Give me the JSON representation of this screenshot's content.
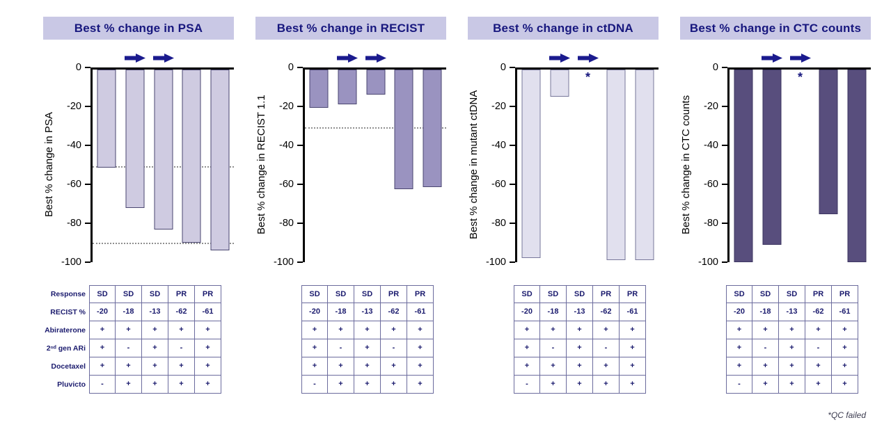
{
  "figure": {
    "footnote": "*QC failed"
  },
  "colors": {
    "banner_bg": "#c9c8e5",
    "banner_text": "#17177e",
    "arrow": "#1b1b8e",
    "table_border": "#6b6b9d",
    "table_text": "#1b1b6e",
    "ref_line": "#8f8f8f"
  },
  "table": {
    "row_labels": [
      "Response",
      "RECIST %",
      "Abiraterone",
      "2ⁿᵈ gen ARi",
      "Docetaxel",
      "Pluvicto"
    ],
    "rows": [
      [
        "SD",
        "SD",
        "SD",
        "PR",
        "PR"
      ],
      [
        "-20",
        "-18",
        "-13",
        "-62",
        "-61"
      ],
      [
        "+",
        "+",
        "+",
        "+",
        "+"
      ],
      [
        "+",
        "-",
        "+",
        "-",
        "+"
      ],
      [
        "+",
        "+",
        "+",
        "+",
        "+"
      ],
      [
        "-",
        "+",
        "+",
        "+",
        "+"
      ]
    ]
  },
  "chart_data": [
    {
      "type": "bar",
      "title": "Best % change in PSA",
      "ylabel": "Best % change in PSA",
      "ylim": [
        -100,
        0
      ],
      "yticks": [
        0,
        -20,
        -40,
        -60,
        -80,
        -100
      ],
      "values": [
        -51,
        -72,
        -83,
        -90,
        -94
      ],
      "ref_lines": [
        -50,
        -90
      ],
      "arrow_slots": [
        1,
        2
      ],
      "asterisk_slot": null,
      "bar_color": "#cfcbe1",
      "bar_border": "#4a4670"
    },
    {
      "type": "bar",
      "title": "Best % change in RECIST",
      "ylabel": "Best % change in RECIST 1.1",
      "ylim": [
        -100,
        0
      ],
      "yticks": [
        0,
        -20,
        -40,
        -60,
        -80,
        -100
      ],
      "values": [
        -20,
        -18,
        -13,
        -62,
        -61
      ],
      "ref_lines": [
        -30
      ],
      "arrow_slots": [
        1,
        2
      ],
      "asterisk_slot": null,
      "bar_color": "#9a93c0",
      "bar_border": "#4a4670"
    },
    {
      "type": "bar",
      "title": "Best % change in ctDNA",
      "ylabel": "Best % change in mutant ctDNA",
      "ylim": [
        -100,
        0
      ],
      "yticks": [
        0,
        -20,
        -40,
        -60,
        -80,
        -100
      ],
      "values": [
        -98,
        -14,
        null,
        -99,
        -99
      ],
      "ref_lines": [],
      "arrow_slots": [
        1,
        2
      ],
      "asterisk_slot": 2,
      "bar_color": "#e1e0ee",
      "bar_border": "#77779a"
    },
    {
      "type": "bar",
      "title": "Best % change in CTC counts",
      "ylabel": "Best % change in CTC counts",
      "ylim": [
        -100,
        0
      ],
      "yticks": [
        0,
        -20,
        -40,
        -60,
        -80,
        -100
      ],
      "values": [
        -100,
        -91,
        null,
        -75,
        -100
      ],
      "ref_lines": [],
      "arrow_slots": [
        1,
        2
      ],
      "asterisk_slot": 2,
      "bar_color": "#584e7d",
      "bar_border": "#3c3560"
    }
  ]
}
